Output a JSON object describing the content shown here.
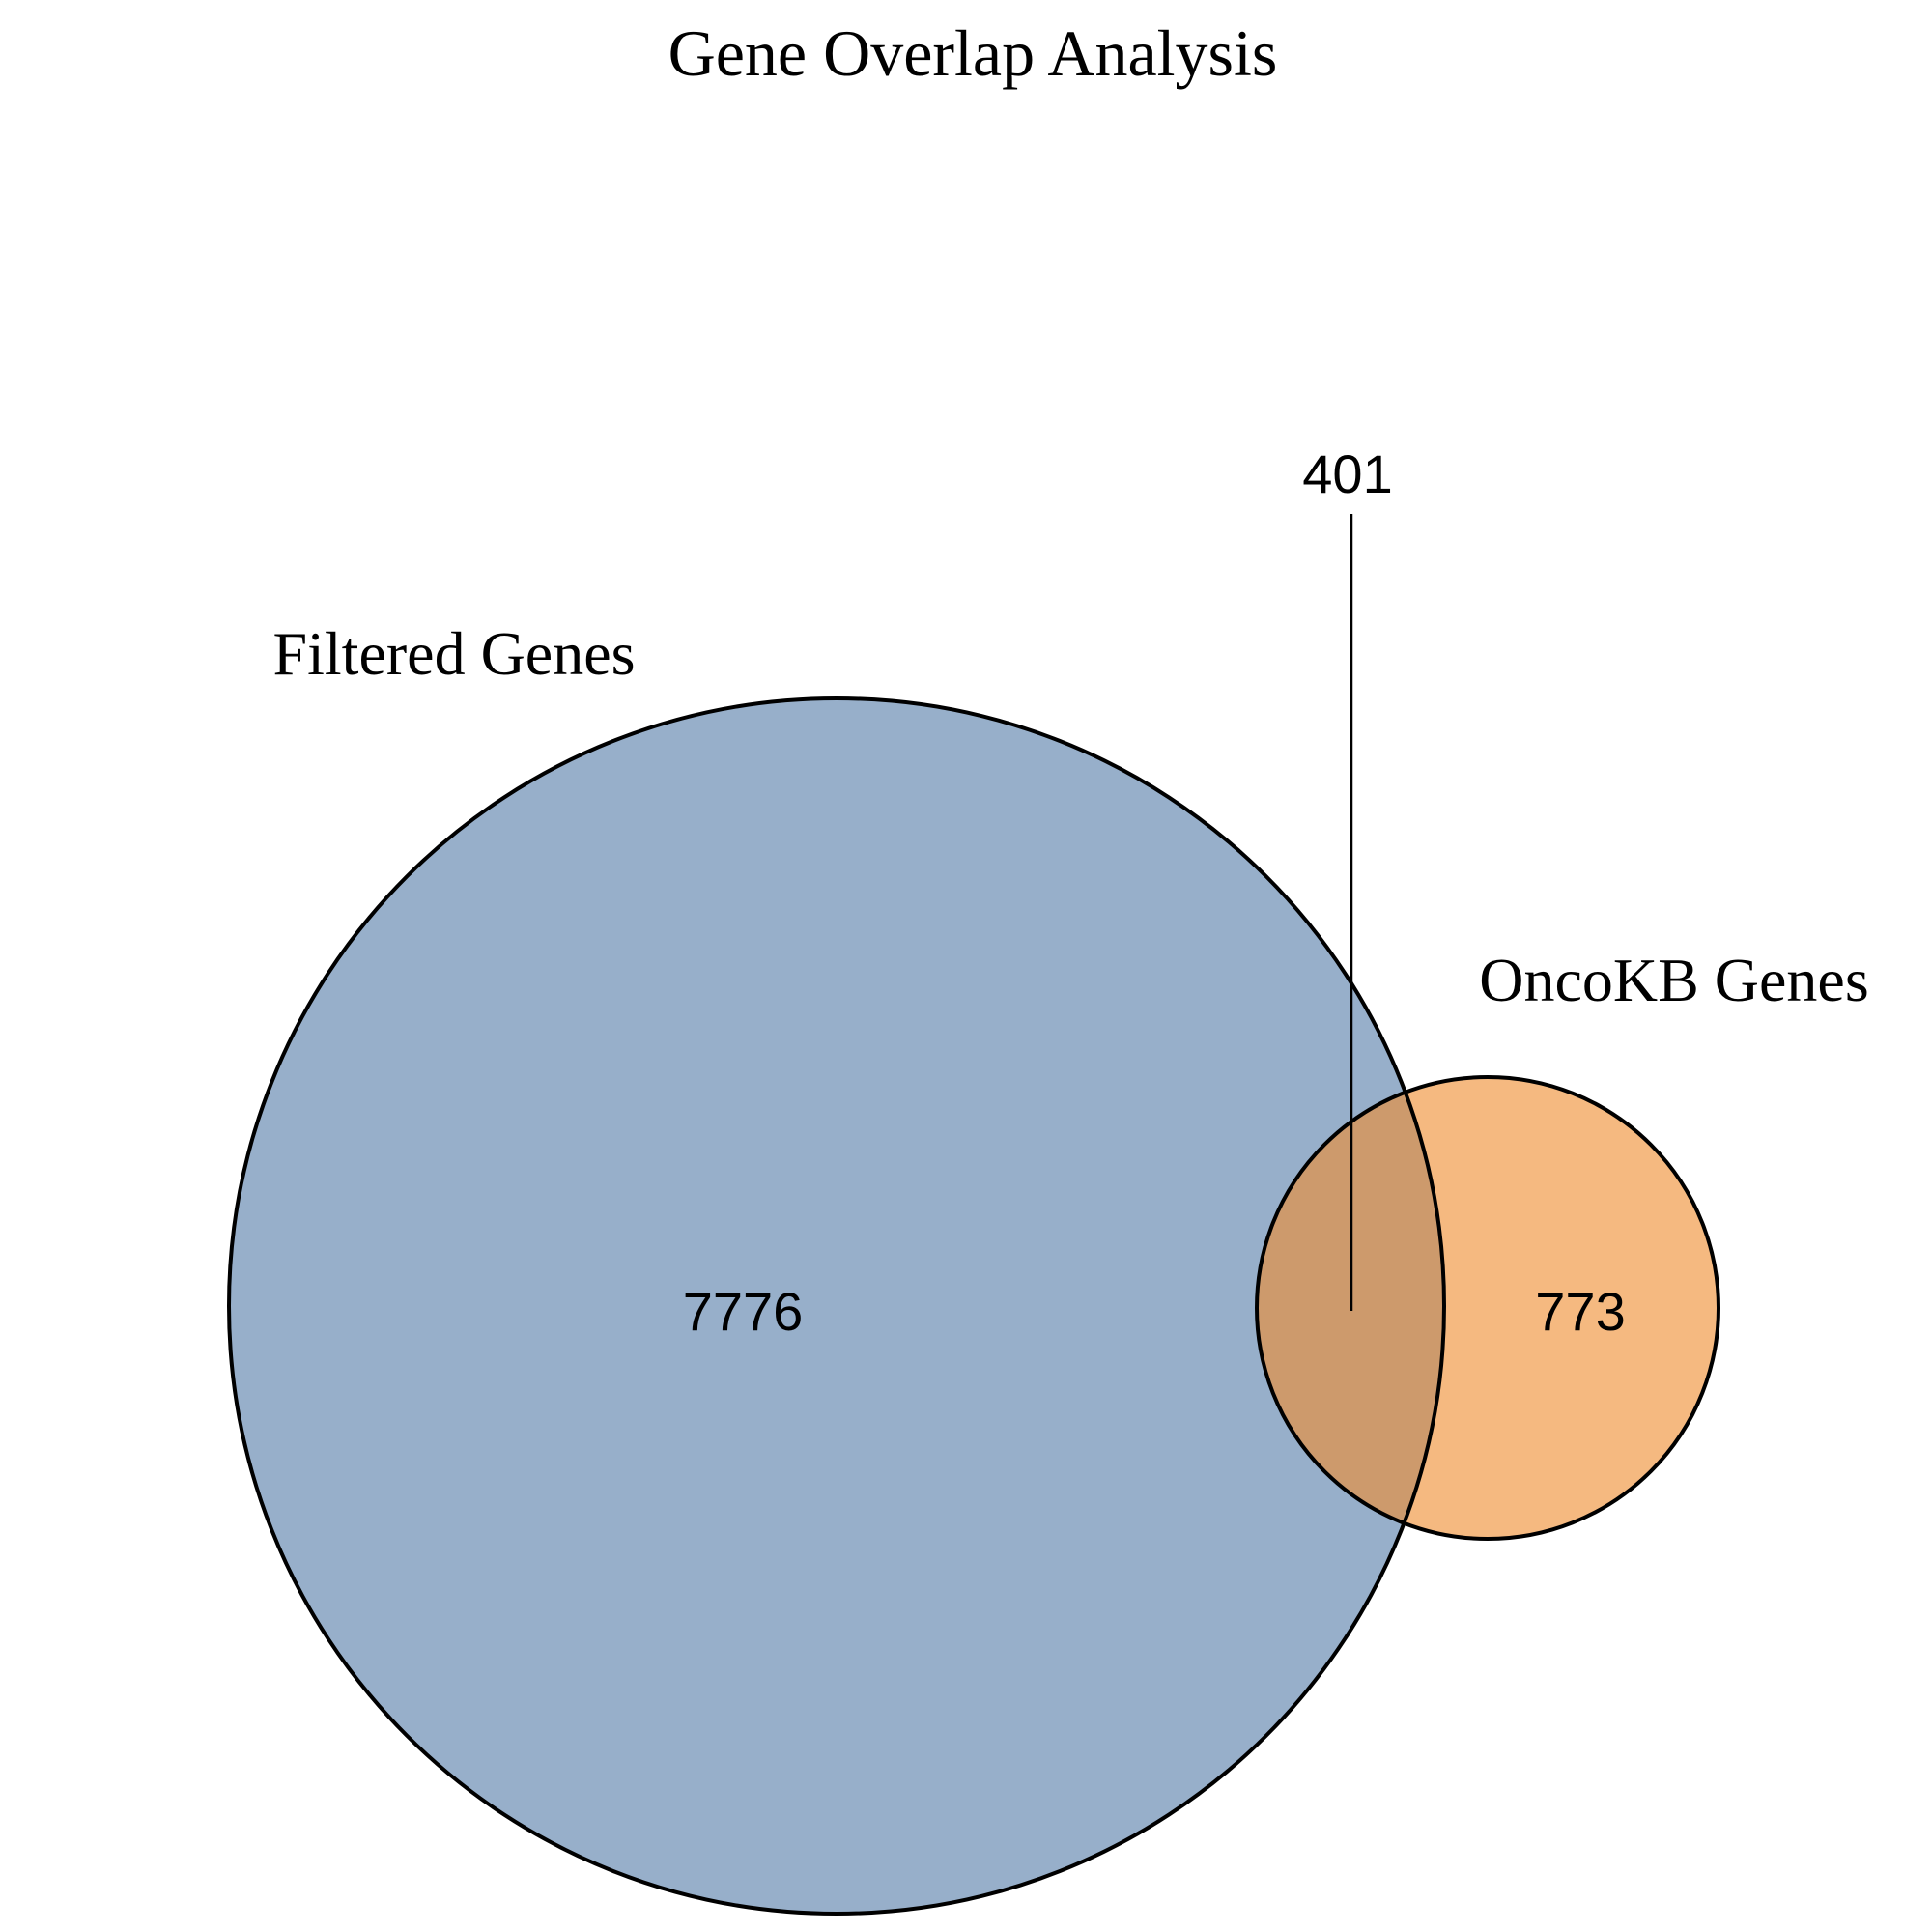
{
  "title": "Gene Overlap Analysis",
  "sets": [
    {
      "id": "filtered",
      "label": "Filtered Genes",
      "color": "#97afca"
    },
    {
      "id": "oncokb",
      "label": "OncoKB Genes",
      "color": "#f5b980"
    }
  ],
  "overlap_color": "#cd9a6c",
  "outline_color": "#000000",
  "counts": {
    "filtered_only": "7776",
    "oncokb_only": "773",
    "intersection": "401"
  }
}
